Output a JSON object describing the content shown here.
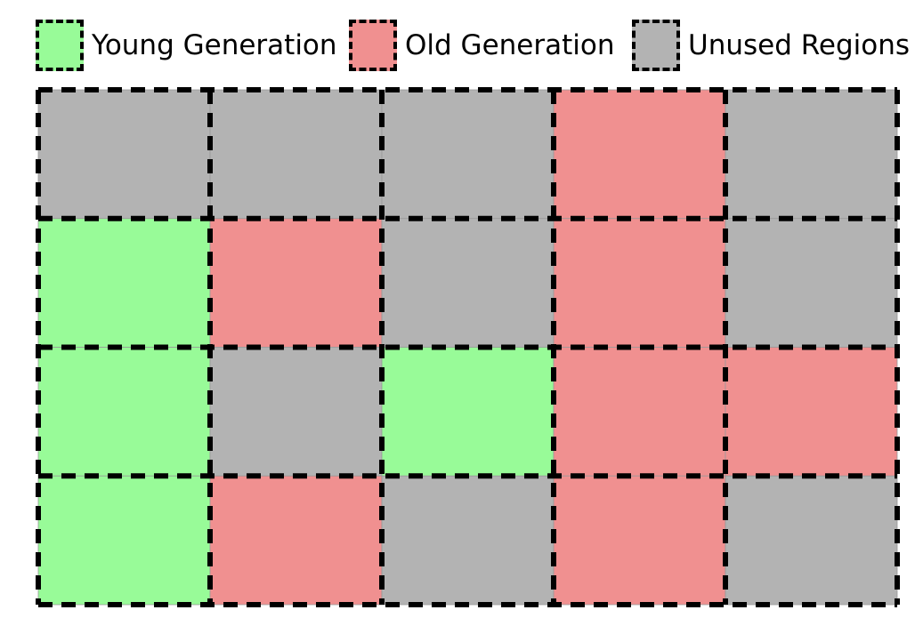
{
  "page": {
    "background_color": "#ffffff"
  },
  "legend": {
    "items": [
      {
        "id": "young",
        "label": "Young Generation",
        "color": "#98FB98"
      },
      {
        "id": "old",
        "label": "Old Generation",
        "color": "#F09090"
      },
      {
        "id": "unused",
        "label": "Unused Regions",
        "color": "#B3B3B3"
      }
    ]
  },
  "heap": {
    "rows": 4,
    "cols": 5,
    "cell_types": [
      [
        "unused",
        "unused",
        "unused",
        "old",
        "unused"
      ],
      [
        "young",
        "old",
        "unused",
        "old",
        "unused"
      ],
      [
        "young",
        "unused",
        "young",
        "old",
        "old"
      ],
      [
        "young",
        "old",
        "unused",
        "old",
        "unused"
      ]
    ],
    "border_color": "#000000",
    "hairline_color": "#999999"
  }
}
